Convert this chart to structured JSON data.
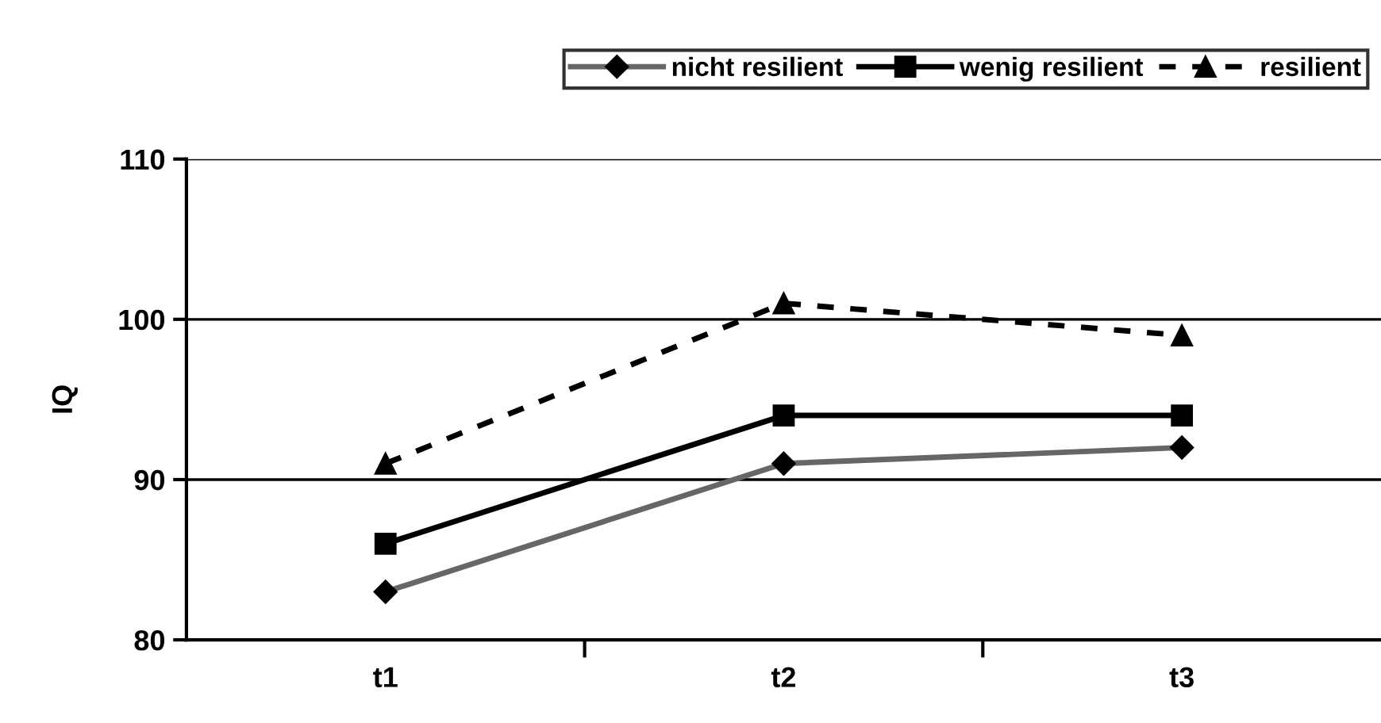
{
  "chart_data": {
    "type": "line",
    "ylabel": "IQ",
    "categories": [
      "t1",
      "t2",
      "t3"
    ],
    "series": [
      {
        "name": "nicht resilient",
        "color": "#666666",
        "values": [
          83,
          91,
          92
        ],
        "marker": "diamond",
        "line_style": "solid"
      },
      {
        "name": "wenig resilient",
        "color": "#000000",
        "values": [
          86,
          94,
          94
        ],
        "marker": "square",
        "line_style": "solid"
      },
      {
        "name": "resilient",
        "color": "#000000",
        "values": [
          91,
          101,
          99
        ],
        "marker": "triangle",
        "line_style": "dashed"
      }
    ],
    "ylim": [
      80,
      110
    ],
    "yticks": [
      80,
      90,
      100,
      110
    ],
    "grid": "y",
    "legend": "top"
  }
}
